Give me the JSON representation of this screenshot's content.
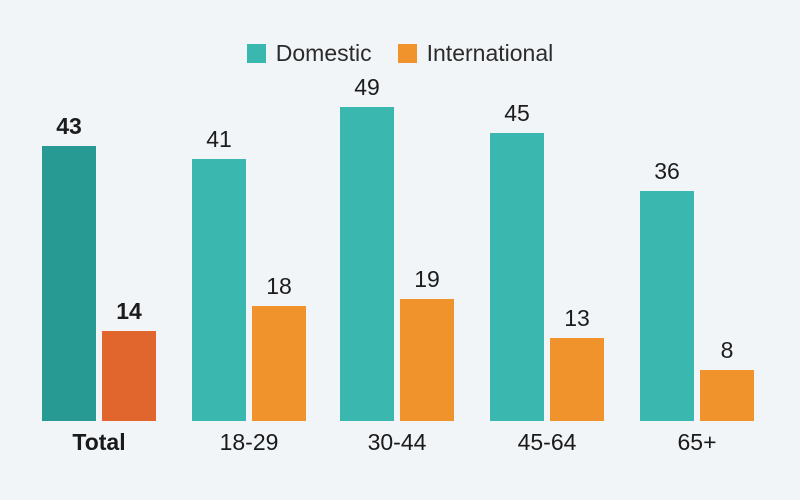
{
  "page": {
    "background_color": "#f2f5f8",
    "text_color": "#1c1c1c"
  },
  "chart_data": {
    "type": "bar",
    "title": "",
    "xlabel": "",
    "ylabel": "",
    "categories": [
      "Total",
      "18-29",
      "30-44",
      "45-64",
      "65+"
    ],
    "series": [
      {
        "name": "Domestic",
        "values": [
          43,
          41,
          49,
          45,
          36
        ],
        "color": "#3ab7af",
        "highlight_color": "#279a94"
      },
      {
        "name": "International",
        "values": [
          14,
          18,
          19,
          13,
          8
        ],
        "color": "#f0932d",
        "highlight_color": "#e0662d"
      }
    ],
    "highlight_category": "Total",
    "value_labels": true,
    "legend_position": "top",
    "grid": false,
    "axes_hidden": true,
    "ylim": [
      0,
      52
    ]
  }
}
